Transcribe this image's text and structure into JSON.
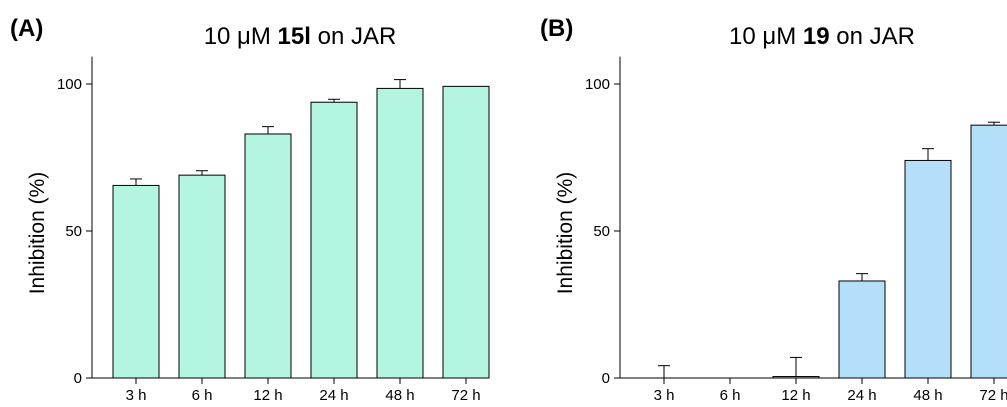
{
  "chart_data": [
    {
      "type": "bar",
      "panel_label": "(A)",
      "title": {
        "prefix": "10 μM ",
        "compound": "15l",
        "suffix": " on JAR"
      },
      "xlabel": "",
      "ylabel": "Inhibition (%)",
      "ylim": [
        0,
        110
      ],
      "yticks": [
        0,
        50,
        100
      ],
      "categories": [
        "3 h",
        "6 h",
        "12 h",
        "24 h",
        "48 h",
        "72 h"
      ],
      "values": [
        65.5,
        69,
        83,
        93.8,
        98.5,
        99.2
      ],
      "errors": [
        2.2,
        1.5,
        2.5,
        1.0,
        3.0,
        0
      ],
      "bar_color": "#b3f5e0",
      "grid": false
    },
    {
      "type": "bar",
      "panel_label": "(B)",
      "title": {
        "prefix": "10 μM ",
        "compound": "19",
        "suffix": " on JAR"
      },
      "xlabel": "",
      "ylabel": "Inhibition (%)",
      "ylim": [
        0,
        110
      ],
      "yticks": [
        0,
        50,
        100
      ],
      "categories": [
        "3 h",
        "6 h",
        "12 h",
        "24 h",
        "48 h",
        "72 h"
      ],
      "values": [
        0,
        0,
        0.5,
        33,
        74,
        86
      ],
      "errors": [
        4.2,
        0,
        6.5,
        2.5,
        4.0,
        1.0
      ],
      "bar_color": "#b3dff8",
      "grid": false
    }
  ]
}
